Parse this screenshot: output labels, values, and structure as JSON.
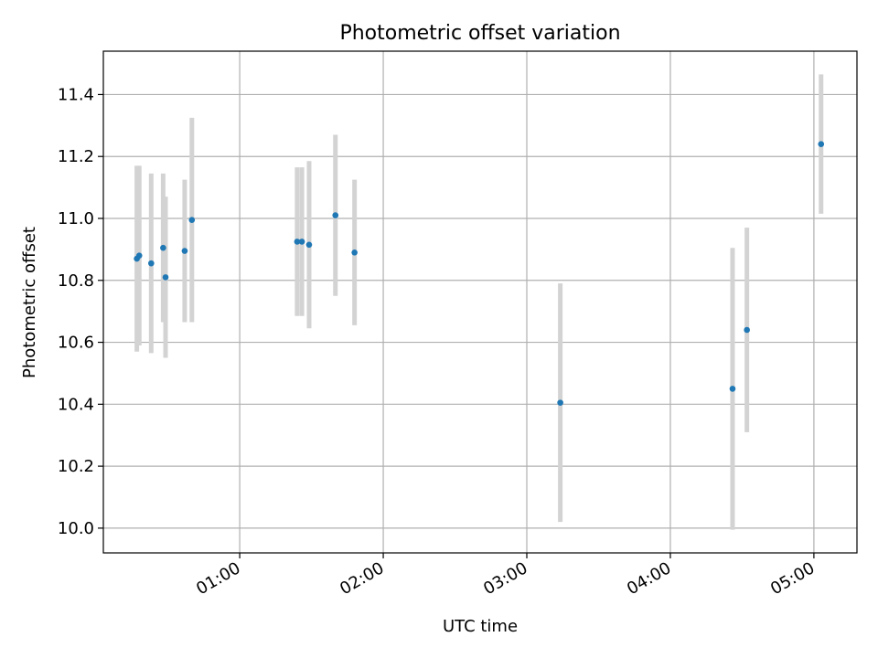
{
  "chart_data": {
    "type": "scatter",
    "title": "Photometric offset variation",
    "xlabel": "UTC time",
    "ylabel": "Photometric offset",
    "grid": true,
    "xlim": [
      "00:03",
      "05:18"
    ],
    "ylim": [
      9.92,
      11.54
    ],
    "x_ticks": [
      "01:00",
      "02:00",
      "03:00",
      "04:00",
      "05:00"
    ],
    "y_ticks": [
      "10.0",
      "10.2",
      "10.4",
      "10.6",
      "10.8",
      "11.0",
      "11.2",
      "11.4"
    ],
    "colors": {
      "point": "#1f77b4",
      "errorbar": "#d3d3d3",
      "grid": "#b0b0b0"
    },
    "series": [
      {
        "points": [
          {
            "x": "00:17",
            "y": 10.87,
            "err": 0.3
          },
          {
            "x": "00:18",
            "y": 10.88,
            "err": 0.29
          },
          {
            "x": "00:23",
            "y": 10.855,
            "err": 0.29
          },
          {
            "x": "00:28",
            "y": 10.905,
            "err": 0.24
          },
          {
            "x": "00:29",
            "y": 10.81,
            "err": 0.26
          },
          {
            "x": "00:37",
            "y": 10.895,
            "err": 0.23
          },
          {
            "x": "00:40",
            "y": 10.995,
            "err": 0.33
          },
          {
            "x": "01:24",
            "y": 10.925,
            "err": 0.24
          },
          {
            "x": "01:26",
            "y": 10.925,
            "err": 0.24
          },
          {
            "x": "01:29",
            "y": 10.915,
            "err": 0.27
          },
          {
            "x": "01:40",
            "y": 11.01,
            "err": 0.26
          },
          {
            "x": "01:48",
            "y": 10.89,
            "err": 0.235
          },
          {
            "x": "03:14",
            "y": 10.405,
            "err": 0.385
          },
          {
            "x": "04:26",
            "y": 10.45,
            "err": 0.455
          },
          {
            "x": "04:32",
            "y": 10.64,
            "err": 0.33
          },
          {
            "x": "05:03",
            "y": 11.24,
            "err": 0.225
          }
        ]
      }
    ]
  }
}
